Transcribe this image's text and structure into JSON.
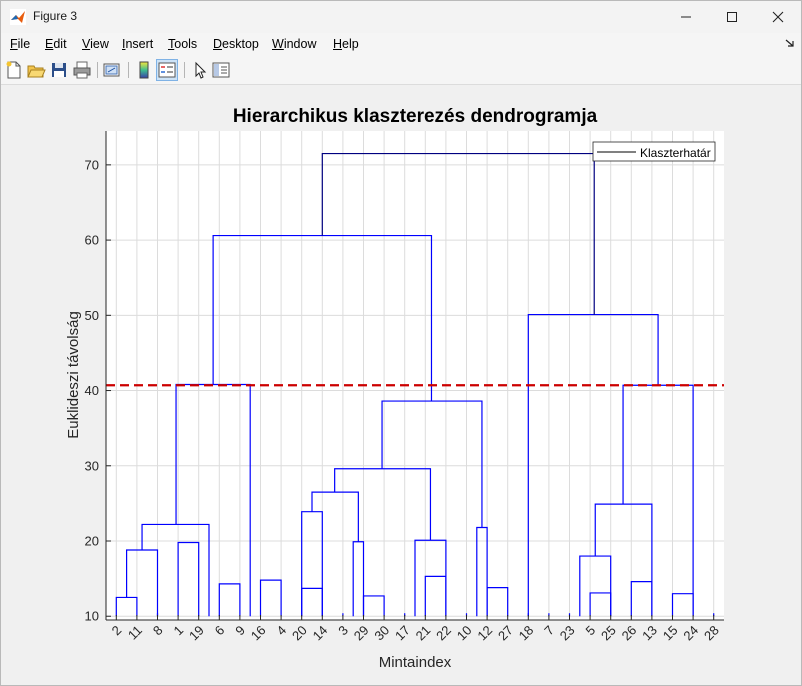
{
  "window": {
    "title": "Figure 3"
  },
  "menu": [
    {
      "label": "File",
      "accel": "F",
      "rest": "ile"
    },
    {
      "label": "Edit",
      "accel": "E",
      "rest": "dit"
    },
    {
      "label": "View",
      "accel": "V",
      "rest": "iew"
    },
    {
      "label": "Insert",
      "accel": "I",
      "rest": "nsert"
    },
    {
      "label": "Tools",
      "accel": "T",
      "rest": "ools"
    },
    {
      "label": "Desktop",
      "accel": "D",
      "rest": "esktop"
    },
    {
      "label": "Window",
      "accel": "W",
      "rest": "indow"
    },
    {
      "label": "Help",
      "accel": "H",
      "rest": "elp"
    }
  ],
  "toolbar": [
    {
      "name": "new-figure-icon"
    },
    {
      "name": "open-file-icon"
    },
    {
      "name": "save-icon"
    },
    {
      "name": "print-icon"
    },
    {
      "name": "link-plot-icon"
    },
    {
      "name": "colorbar-icon"
    },
    {
      "name": "legend-icon",
      "active": true
    },
    {
      "name": "edit-plot-pointer-icon"
    },
    {
      "name": "property-inspector-icon"
    }
  ],
  "colors": {
    "dendrogram": "#0000ff",
    "above_cut": "#000080",
    "threshold": "#cc0000"
  },
  "chart_data": {
    "type": "dendrogram",
    "title": "Hierarchikus klaszterezés dendrogramja",
    "xlabel": "Mintaindex",
    "ylabel": "Euklideszi távolság",
    "ylim": [
      9.5,
      74.5
    ],
    "yticks": [
      10,
      20,
      30,
      40,
      50,
      60,
      70
    ],
    "grid": true,
    "legend": {
      "position": "top-right",
      "entries": [
        "Klaszterhatár"
      ]
    },
    "threshold": 40.7,
    "leaf_order": [
      "2",
      "11",
      "8",
      "1",
      "19",
      "6",
      "9",
      "16",
      "4",
      "20",
      "14",
      "3",
      "29",
      "30",
      "17",
      "21",
      "22",
      "10",
      "12",
      "27",
      "18",
      "7",
      "23",
      "5",
      "25",
      "26",
      "13",
      "15",
      "24",
      "28"
    ],
    "leaf_base": 10,
    "merges": [
      {
        "left": "2",
        "right": "11",
        "height": 12.5
      },
      {
        "left": "1",
        "right": "19",
        "height": 19.8
      },
      {
        "left": "6",
        "right": "9",
        "height": 14.3
      },
      {
        "left": "16",
        "right": "4",
        "height": 14.8
      },
      {
        "left": "20",
        "right": "14",
        "height": 13.7
      },
      {
        "left": "29",
        "right": "30",
        "height": 12.7
      },
      {
        "left": "21",
        "right": "22",
        "height": 15.3
      },
      {
        "left": "12",
        "right": "27",
        "height": 13.8
      },
      {
        "left": "5",
        "right": "25",
        "height": 13.1
      },
      {
        "left": "26",
        "right": "13",
        "height": 14.6
      },
      {
        "left": "15",
        "right": "24",
        "height": 13.0
      }
    ],
    "links": [
      {
        "xs": [
          1.5,
          3
        ],
        "y": 18.8
      },
      {
        "xs": [
          2.25,
          5.5
        ],
        "y": 22.2
      },
      {
        "xs": [
          5.5,
          5.5
        ],
        "y": 19.8
      },
      {
        "xs": [
          10,
          11
        ],
        "y": 23.9
      },
      {
        "xs": [
          12.5,
          13
        ],
        "y": 19.9
      },
      {
        "xs": [
          10.5,
          12.75
        ],
        "y": 26.5
      },
      {
        "xs": [
          15.5,
          17
        ],
        "y": 20.1
      },
      {
        "xs": [
          11.6,
          16.25
        ],
        "y": 29.6
      },
      {
        "xs": [
          18.5,
          19
        ],
        "y": 21.8
      },
      {
        "xs": [
          13.9,
          18.75
        ],
        "y": 38.6
      },
      {
        "xs": [
          3.9,
          7.5
        ],
        "y": 40.8
      },
      {
        "xs": [
          5.7,
          16.3
        ],
        "y": 60.6
      },
      {
        "xs": [
          23.5,
          25
        ],
        "y": 18.0
      },
      {
        "xs": [
          24.25,
          27
        ],
        "y": 24.9
      },
      {
        "xs": [
          25.6,
          29
        ],
        "y": 40.7
      },
      {
        "xs": [
          21,
          27.3
        ],
        "y": 50.1
      },
      {
        "xs": [
          11,
          24.2
        ],
        "y": 71.5
      }
    ]
  }
}
